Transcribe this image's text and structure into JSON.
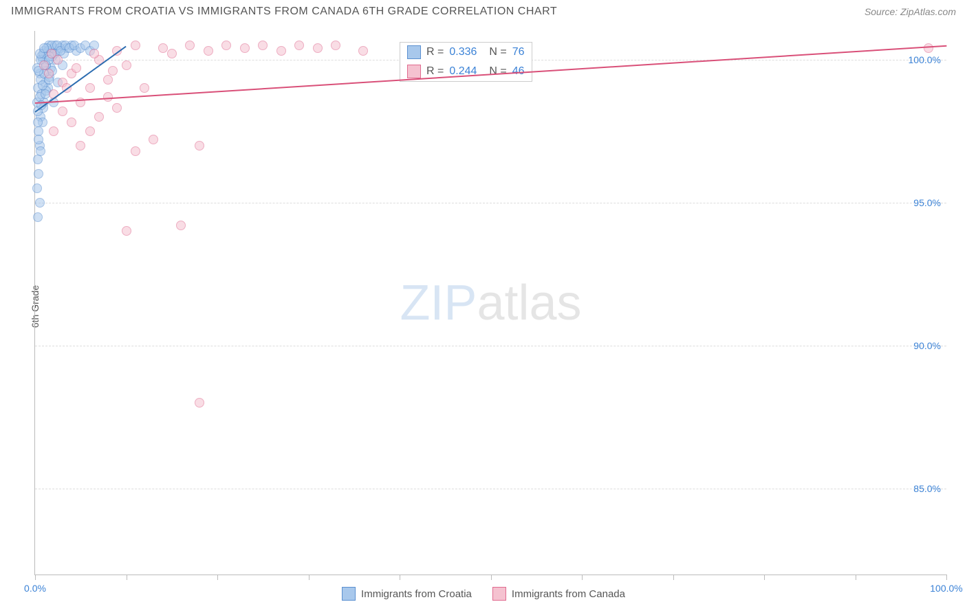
{
  "title": "IMMIGRANTS FROM CROATIA VS IMMIGRANTS FROM CANADA 6TH GRADE CORRELATION CHART",
  "source": "Source: ZipAtlas.com",
  "watermark": {
    "part1": "ZIP",
    "part2": "atlas"
  },
  "ylabel": "6th Grade",
  "chart": {
    "type": "scatter",
    "background_color": "#ffffff",
    "grid_color": "#dddddd",
    "axis_color": "#bbbbbb",
    "label_color": "#555555",
    "tick_label_color": "#3b82d6",
    "tick_fontsize": 14,
    "label_fontsize": 14,
    "title_fontsize": 16,
    "xlim": [
      0,
      100
    ],
    "ylim": [
      82,
      101
    ],
    "xticks": [
      0,
      10,
      20,
      30,
      40,
      50,
      60,
      70,
      80,
      90,
      100
    ],
    "xtick_labels": {
      "0": "0.0%",
      "100": "100.0%"
    },
    "yticks": [
      85,
      90,
      95,
      100
    ],
    "ytick_labels": [
      "85.0%",
      "90.0%",
      "95.0%",
      "100.0%"
    ],
    "marker_size": 14,
    "marker_opacity": 0.55,
    "series": [
      {
        "name": "Immigrants from Croatia",
        "color_fill": "#a8c8ec",
        "color_stroke": "#5a8fd0",
        "r": 0.336,
        "n": 76,
        "trend": {
          "x1": 0,
          "y1": 98.2,
          "x2": 10,
          "y2": 100.5,
          "color": "#2b6cb0",
          "width": 2
        },
        "points": [
          [
            0.2,
            98.5
          ],
          [
            0.3,
            99.0
          ],
          [
            0.5,
            99.5
          ],
          [
            0.8,
            100.0
          ],
          [
            1.0,
            100.3
          ],
          [
            1.2,
            99.8
          ],
          [
            1.5,
            100.5
          ],
          [
            0.4,
            97.5
          ],
          [
            0.6,
            98.0
          ],
          [
            0.7,
            98.8
          ],
          [
            1.1,
            99.2
          ],
          [
            1.3,
            99.6
          ],
          [
            1.8,
            100.2
          ],
          [
            2.0,
            100.4
          ],
          [
            2.2,
            100.5
          ],
          [
            2.5,
            100.3
          ],
          [
            3.0,
            100.5
          ],
          [
            3.5,
            100.4
          ],
          [
            4.0,
            100.5
          ],
          [
            4.5,
            100.3
          ],
          [
            0.3,
            96.5
          ],
          [
            0.5,
            97.0
          ],
          [
            0.8,
            97.8
          ],
          [
            1.0,
            98.5
          ],
          [
            1.4,
            99.0
          ],
          [
            1.6,
            99.4
          ],
          [
            0.2,
            95.5
          ],
          [
            0.4,
            96.0
          ],
          [
            0.6,
            96.8
          ],
          [
            0.3,
            94.5
          ],
          [
            0.5,
            95.0
          ],
          [
            0.4,
            97.2
          ],
          [
            0.9,
            98.3
          ],
          [
            1.2,
            98.9
          ],
          [
            1.7,
            99.7
          ],
          [
            2.3,
            100.0
          ],
          [
            0.6,
            99.3
          ],
          [
            1.1,
            99.9
          ],
          [
            1.9,
            100.1
          ],
          [
            2.7,
            100.4
          ],
          [
            3.2,
            100.2
          ],
          [
            0.2,
            99.7
          ],
          [
            0.7,
            100.1
          ],
          [
            1.4,
            100.3
          ],
          [
            1.8,
            100.5
          ],
          [
            2.1,
            100.2
          ],
          [
            0.3,
            98.2
          ],
          [
            0.5,
            98.7
          ],
          [
            0.8,
            99.1
          ],
          [
            1.0,
            99.5
          ],
          [
            1.2,
            99.8
          ],
          [
            0.4,
            99.6
          ],
          [
            0.6,
            100.0
          ],
          [
            0.9,
            100.2
          ],
          [
            1.3,
            100.4
          ],
          [
            1.6,
            100.1
          ],
          [
            2.4,
            100.5
          ],
          [
            2.8,
            100.3
          ],
          [
            3.3,
            100.5
          ],
          [
            3.8,
            100.4
          ],
          [
            4.3,
            100.5
          ],
          [
            5.0,
            100.4
          ],
          [
            5.5,
            100.5
          ],
          [
            6.0,
            100.3
          ],
          [
            6.5,
            100.5
          ],
          [
            2.0,
            98.5
          ],
          [
            2.5,
            99.2
          ],
          [
            3.0,
            99.8
          ],
          [
            0.5,
            100.2
          ],
          [
            1.0,
            100.4
          ],
          [
            1.5,
            100.0
          ],
          [
            0.3,
            97.8
          ],
          [
            0.7,
            98.4
          ],
          [
            1.1,
            98.8
          ],
          [
            1.5,
            99.3
          ],
          [
            1.9,
            99.6
          ]
        ]
      },
      {
        "name": "Immigrants from Canada",
        "color_fill": "#f5c2d0",
        "color_stroke": "#e06a8f",
        "r": 0.244,
        "n": 46,
        "trend": {
          "x1": 0,
          "y1": 98.5,
          "x2": 100,
          "y2": 100.5,
          "color": "#d94f78",
          "width": 2
        },
        "points": [
          [
            2.0,
            98.8
          ],
          [
            3.0,
            99.2
          ],
          [
            4.0,
            99.5
          ],
          [
            5.0,
            98.5
          ],
          [
            6.0,
            99.0
          ],
          [
            7.0,
            100.0
          ],
          [
            8.0,
            99.3
          ],
          [
            9.0,
            100.3
          ],
          [
            10.0,
            99.8
          ],
          [
            11.0,
            100.5
          ],
          [
            12.0,
            99.0
          ],
          [
            14.0,
            100.4
          ],
          [
            15.0,
            100.2
          ],
          [
            17.0,
            100.5
          ],
          [
            19.0,
            100.3
          ],
          [
            21.0,
            100.5
          ],
          [
            23.0,
            100.4
          ],
          [
            25.0,
            100.5
          ],
          [
            27.0,
            100.3
          ],
          [
            29.0,
            100.5
          ],
          [
            31.0,
            100.4
          ],
          [
            33.0,
            100.5
          ],
          [
            36.0,
            100.3
          ],
          [
            5.0,
            97.0
          ],
          [
            7.0,
            98.0
          ],
          [
            9.0,
            98.3
          ],
          [
            11.0,
            96.8
          ],
          [
            13.0,
            97.2
          ],
          [
            18.0,
            97.0
          ],
          [
            1.5,
            99.5
          ],
          [
            2.5,
            100.0
          ],
          [
            3.5,
            99.0
          ],
          [
            4.5,
            99.7
          ],
          [
            6.5,
            100.2
          ],
          [
            8.5,
            99.6
          ],
          [
            2.0,
            97.5
          ],
          [
            3.0,
            98.2
          ],
          [
            4.0,
            97.8
          ],
          [
            6.0,
            97.5
          ],
          [
            8.0,
            98.7
          ],
          [
            10.0,
            94.0
          ],
          [
            16.0,
            94.2
          ],
          [
            18.0,
            88.0
          ],
          [
            1.0,
            99.8
          ],
          [
            1.8,
            100.2
          ],
          [
            98.0,
            100.4
          ]
        ]
      }
    ]
  },
  "legend": {
    "items": [
      {
        "label": "Immigrants from Croatia",
        "fill": "#a8c8ec",
        "stroke": "#5a8fd0"
      },
      {
        "label": "Immigrants from Canada",
        "fill": "#f5c2d0",
        "stroke": "#e06a8f"
      }
    ]
  },
  "stat_box": {
    "rows": [
      {
        "swatch_fill": "#a8c8ec",
        "swatch_stroke": "#5a8fd0",
        "r_label": "R =",
        "r": "0.336",
        "n_label": "N =",
        "n": "76"
      },
      {
        "swatch_fill": "#f5c2d0",
        "swatch_stroke": "#e06a8f",
        "r_label": "R =",
        "r": "0.244",
        "n_label": "N =",
        "n": "46"
      }
    ]
  }
}
